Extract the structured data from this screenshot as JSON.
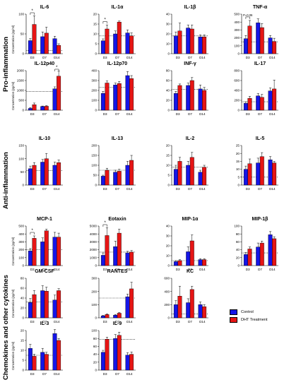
{
  "colors": {
    "control": "#1515e6",
    "treatment": "#e61515",
    "bracket": "#000000"
  },
  "sections": [
    "Pro-inflammation",
    "Anti-inflammation",
    "Chemokines and other cytokines"
  ],
  "ylabel": "Concentration (pg/ml)",
  "legend": [
    {
      "label": "Control",
      "color": "#1515e6"
    },
    {
      "label": "DHT Treatment",
      "color": "#e61515"
    }
  ],
  "chart_data": [
    {
      "type": "bar",
      "title": "IL-6",
      "categories": [
        "D3",
        "D7",
        "D14"
      ],
      "ylim": [
        0,
        100
      ],
      "yticks": [
        0,
        50,
        100
      ],
      "series": [
        {
          "name": "Control",
          "values": [
            33,
            43,
            38
          ],
          "err": [
            5,
            12,
            6
          ]
        },
        {
          "name": "DHT Treatment",
          "values": [
            74,
            52,
            21
          ],
          "err": [
            22,
            15,
            4
          ]
        }
      ],
      "baseline": 8,
      "sig": {
        "label": "*"
      }
    },
    {
      "type": "bar",
      "title": "IL-1α",
      "categories": [
        "D3",
        "D7",
        "D14"
      ],
      "ylim": [
        0,
        20
      ],
      "yticks": [
        0,
        5,
        10,
        15,
        20
      ],
      "series": [
        {
          "name": "Control",
          "values": [
            6.5,
            10,
            10.5
          ],
          "err": [
            1,
            1.5,
            1.5
          ]
        },
        {
          "name": "DHT Treatment",
          "values": [
            12.5,
            16,
            9
          ],
          "err": [
            2,
            0.5,
            1.5
          ]
        }
      ],
      "baseline": 9,
      "sig": {
        "label": "*"
      }
    },
    {
      "type": "bar",
      "title": "IL-1β",
      "categories": [
        "D3",
        "D7",
        "D14"
      ],
      "ylim": [
        0,
        40
      ],
      "yticks": [
        0,
        10,
        20,
        30,
        40
      ],
      "series": [
        {
          "name": "Control",
          "values": [
            18,
            26,
            17
          ],
          "err": [
            4,
            3,
            2
          ]
        },
        {
          "name": "DHT Treatment",
          "values": [
            23,
            25,
            17
          ],
          "err": [
            8,
            4,
            2
          ]
        }
      ],
      "baseline": 18
    },
    {
      "type": "bar",
      "title": "TNF-α",
      "categories": [
        "D3",
        "D7",
        "D14"
      ],
      "ylim": [
        0,
        500
      ],
      "yticks": [
        0,
        100,
        200,
        300,
        400,
        500
      ],
      "series": [
        {
          "name": "Control",
          "values": [
            190,
            390,
            200
          ],
          "err": [
            40,
            50,
            30
          ]
        },
        {
          "name": "DHT Treatment",
          "values": [
            350,
            330,
            155
          ],
          "err": [
            70,
            50,
            40
          ]
        }
      ],
      "baseline": 150,
      "sig": {
        "label": "P=0.06"
      }
    },
    {
      "type": "bar",
      "title": "IL-12p40",
      "categories": [
        "D3",
        "D7",
        "D14"
      ],
      "ylim": [
        0,
        2000
      ],
      "yticks": [
        0,
        500,
        1000,
        1500,
        2000
      ],
      "series": [
        {
          "name": "Control",
          "values": [
            90,
            190,
            1080
          ],
          "err": [
            40,
            20,
            100
          ]
        },
        {
          "name": "DHT Treatment",
          "values": [
            280,
            200,
            1720
          ],
          "err": [
            80,
            30,
            250
          ]
        }
      ],
      "baseline": 950,
      "sig": {
        "label": "*"
      }
    },
    {
      "type": "bar",
      "title": "IL-12p70",
      "categories": [
        "D3",
        "D7",
        "D14"
      ],
      "ylim": [
        0,
        400
      ],
      "yticks": [
        0,
        100,
        200,
        300,
        400
      ],
      "series": [
        {
          "name": "Control",
          "values": [
            170,
            255,
            350
          ],
          "err": [
            20,
            20,
            40
          ]
        },
        {
          "name": "DHT Treatment",
          "values": [
            275,
            270,
            320
          ],
          "err": [
            20,
            20,
            30
          ]
        }
      ],
      "baseline": 230
    },
    {
      "type": "bar",
      "title": "INF-γ",
      "categories": [
        "D3",
        "D7",
        "D14"
      ],
      "ylim": [
        0,
        80
      ],
      "yticks": [
        0,
        20,
        40,
        60,
        80
      ],
      "series": [
        {
          "name": "Control",
          "values": [
            34,
            50,
            43
          ],
          "err": [
            4,
            5,
            8
          ]
        },
        {
          "name": "DHT Treatment",
          "values": [
            50,
            60,
            40
          ],
          "err": [
            3,
            6,
            6
          ]
        }
      ],
      "baseline": 42
    },
    {
      "type": "bar",
      "title": "IL-17",
      "categories": [
        "D3",
        "D7",
        "D14"
      ],
      "ylim": [
        0,
        800
      ],
      "yticks": [
        0,
        200,
        400,
        600,
        800
      ],
      "series": [
        {
          "name": "Control",
          "values": [
            140,
            290,
            390
          ],
          "err": [
            30,
            50,
            60
          ]
        },
        {
          "name": "DHT Treatment",
          "values": [
            240,
            260,
            430
          ],
          "err": [
            40,
            60,
            180
          ]
        }
      ],
      "baseline": 170
    },
    {
      "type": "bar",
      "title": "IL-10",
      "categories": [
        "D3",
        "D7",
        "D14"
      ],
      "ylim": [
        0,
        150
      ],
      "yticks": [
        0,
        50,
        100,
        150
      ],
      "series": [
        {
          "name": "Control",
          "values": [
            62,
            87,
            75
          ],
          "err": [
            10,
            10,
            12
          ]
        },
        {
          "name": "DHT Treatment",
          "values": [
            75,
            100,
            85
          ],
          "err": [
            10,
            20,
            10
          ]
        }
      ],
      "baseline": 55
    },
    {
      "type": "bar",
      "title": "IL-13",
      "categories": [
        "D3",
        "D7",
        "D14"
      ],
      "ylim": [
        0,
        200
      ],
      "yticks": [
        0,
        50,
        100,
        150,
        200
      ],
      "series": [
        {
          "name": "Control",
          "values": [
            45,
            65,
            100
          ],
          "err": [
            5,
            10,
            20
          ]
        },
        {
          "name": "DHT Treatment",
          "values": [
            75,
            70,
            125
          ],
          "err": [
            10,
            10,
            25
          ]
        }
      ],
      "baseline": 75
    },
    {
      "type": "bar",
      "title": "IL-2",
      "categories": [
        "D3",
        "D7",
        "D14"
      ],
      "ylim": [
        0,
        20
      ],
      "yticks": [
        0,
        5,
        10,
        15,
        20
      ],
      "series": [
        {
          "name": "Control",
          "values": [
            8,
            10,
            6.5
          ],
          "err": [
            2,
            2,
            1
          ]
        },
        {
          "name": "DHT Treatment",
          "values": [
            12,
            14,
            9
          ],
          "err": [
            2,
            2.5,
            1
          ]
        }
      ],
      "baseline": 9
    },
    {
      "type": "bar",
      "title": "IL-5",
      "categories": [
        "D3",
        "D7",
        "D14"
      ],
      "ylim": [
        0,
        25
      ],
      "yticks": [
        0,
        5,
        10,
        15,
        20,
        25
      ],
      "series": [
        {
          "name": "Control",
          "values": [
            10,
            14,
            16
          ],
          "err": [
            2,
            3,
            2
          ]
        },
        {
          "name": "DHT Treatment",
          "values": [
            13.5,
            18,
            14
          ],
          "err": [
            3,
            2.5,
            1
          ]
        }
      ],
      "baseline": 5
    },
    {
      "type": "bar",
      "title": "MCP-1",
      "categories": [
        "D3",
        "D7",
        "D14"
      ],
      "ylim": [
        0,
        500
      ],
      "yticks": [
        0,
        100,
        200,
        300,
        400,
        500
      ],
      "series": [
        {
          "name": "Control",
          "values": [
            185,
            300,
            360
          ],
          "err": [
            30,
            50,
            60
          ]
        },
        {
          "name": "DHT Treatment",
          "values": [
            345,
            440,
            360
          ],
          "err": [
            30,
            20,
            50
          ]
        }
      ],
      "baseline": 200,
      "sig": {
        "label": "*"
      }
    },
    {
      "type": "bar",
      "title": "Eotaxin",
      "categories": [
        "D3",
        "D7",
        "D14"
      ],
      "ylim": [
        0,
        5000
      ],
      "yticks": [
        0,
        1000,
        2000,
        3000,
        4000,
        5000
      ],
      "series": [
        {
          "name": "Control",
          "values": [
            1300,
            2400,
            1600
          ],
          "err": [
            300,
            700,
            200
          ]
        },
        {
          "name": "DHT Treatment",
          "values": [
            3800,
            4100,
            1700
          ],
          "err": [
            1000,
            500,
            200
          ]
        }
      ],
      "baseline": 1700,
      "sig": {
        "label": "*"
      }
    },
    {
      "type": "bar",
      "title": "MIP-1α",
      "categories": [
        "D3",
        "D7",
        "D14"
      ],
      "ylim": [
        0,
        40
      ],
      "yticks": [
        0,
        10,
        20,
        30,
        40
      ],
      "series": [
        {
          "name": "Control",
          "values": [
            4,
            14,
            6
          ],
          "err": [
            1,
            5,
            1
          ]
        },
        {
          "name": "DHT Treatment",
          "values": [
            5,
            25,
            6
          ],
          "err": [
            1,
            6,
            1
          ]
        }
      ],
      "baseline": 5
    },
    {
      "type": "bar",
      "title": "MIP-1β",
      "categories": [
        "D3",
        "D7",
        "D14"
      ],
      "ylim": [
        0,
        100
      ],
      "yticks": [
        0,
        20,
        40,
        60,
        80,
        100
      ],
      "series": [
        {
          "name": "Control",
          "values": [
            28,
            47,
            78
          ],
          "err": [
            5,
            10,
            8
          ]
        },
        {
          "name": "DHT Treatment",
          "values": [
            42,
            57,
            68
          ],
          "err": [
            5,
            5,
            5
          ]
        }
      ],
      "baseline": 32
    },
    {
      "type": "bar",
      "title": "GM-CSF",
      "categories": [
        "D3",
        "D7",
        "D14"
      ],
      "ylim": [
        0,
        80
      ],
      "yticks": [
        0,
        20,
        40,
        60,
        80
      ],
      "series": [
        {
          "name": "Control",
          "values": [
            31,
            55,
            36
          ],
          "err": [
            8,
            10,
            10
          ]
        },
        {
          "name": "DHT Treatment",
          "values": [
            47,
            54,
            55
          ],
          "err": [
            8,
            8,
            4
          ]
        }
      ],
      "baseline": 32
    },
    {
      "type": "bar",
      "title": "RANTES",
      "categories": [
        "D3",
        "D7",
        "D14"
      ],
      "ylim": [
        0,
        300
      ],
      "yticks": [
        0,
        100,
        200,
        300
      ],
      "series": [
        {
          "name": "Control",
          "values": [
            15,
            20,
            160
          ],
          "err": [
            5,
            5,
            20
          ]
        },
        {
          "name": "DHT Treatment",
          "values": [
            25,
            35,
            220
          ],
          "err": [
            5,
            5,
            50
          ]
        }
      ],
      "baseline": 150
    },
    {
      "type": "bar",
      "title": "KC",
      "categories": [
        "D3",
        "D7",
        "D14"
      ],
      "ylim": [
        0,
        600
      ],
      "yticks": [
        0,
        200,
        400,
        600
      ],
      "series": [
        {
          "name": "Control",
          "values": [
            200,
            230,
            200
          ],
          "err": [
            60,
            60,
            40
          ]
        },
        {
          "name": "DHT Treatment",
          "values": [
            330,
            430,
            170
          ],
          "err": [
            150,
            50,
            30
          ]
        }
      ],
      "baseline": 60
    },
    {
      "type": "bar",
      "title": "IL-3",
      "categories": [
        "D3",
        "D7",
        "D14"
      ],
      "ylim": [
        0,
        20
      ],
      "yticks": [
        0,
        5,
        10,
        15,
        20
      ],
      "series": [
        {
          "name": "Control",
          "values": [
            11,
            9,
            18.5
          ],
          "err": [
            2,
            2,
            2
          ]
        },
        {
          "name": "DHT Treatment",
          "values": [
            7,
            8,
            15
          ],
          "err": [
            1,
            1,
            1
          ]
        }
      ],
      "baseline": 7.5
    },
    {
      "type": "bar",
      "title": "IL-9",
      "categories": [
        "D3",
        "D7",
        "D14"
      ],
      "ylim": [
        0,
        100
      ],
      "yticks": [
        0,
        20,
        40,
        60,
        80,
        100
      ],
      "series": [
        {
          "name": "Control",
          "values": [
            45,
            80,
            38
          ],
          "err": [
            5,
            10,
            6
          ]
        },
        {
          "name": "DHT Treatment",
          "values": [
            78,
            88,
            40
          ],
          "err": [
            5,
            8,
            6
          ]
        }
      ],
      "baseline": 78
    }
  ]
}
